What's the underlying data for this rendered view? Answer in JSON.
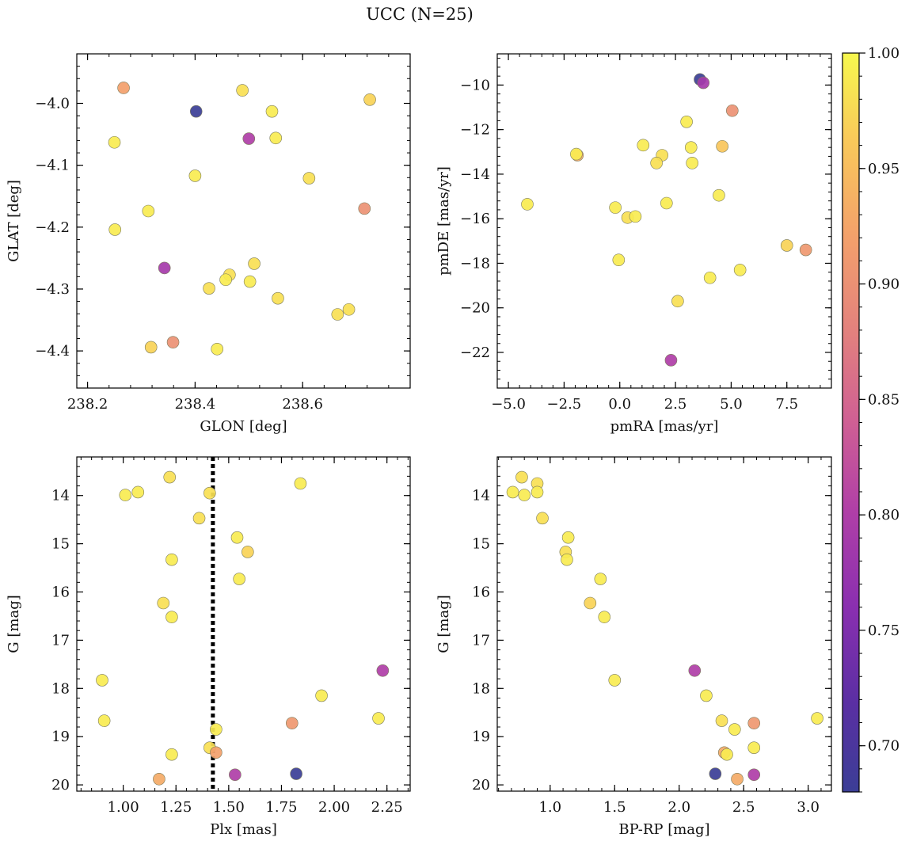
{
  "figure": {
    "title": "UCC (N=25)"
  },
  "colorbar": {
    "colormap": "plasma",
    "range": [
      0.68,
      1.0
    ],
    "ticks": [
      0.7,
      0.75,
      0.8,
      0.85,
      0.9,
      0.95,
      1.0
    ],
    "tick_labels": [
      "0.70",
      "0.75",
      "0.80",
      "0.85",
      "0.90",
      "0.95",
      "1.00"
    ]
  },
  "chart_data": [
    {
      "type": "scatter",
      "xlabel": "GLON [deg]",
      "ylabel": "GLAT [deg]",
      "xlim": [
        238.18,
        238.8
      ],
      "ylim": [
        -4.46,
        -3.92
      ],
      "xticks": [
        238.2,
        238.4,
        238.6
      ],
      "xtick_labels": [
        "238.2",
        "238.4",
        "238.6"
      ],
      "yticks": [
        -4.0,
        -4.1,
        -4.2,
        -4.3,
        -4.4
      ],
      "ytick_labels": [
        "−4.0",
        "−4.1",
        "−4.2",
        "−4.3",
        "−4.4"
      ],
      "y_inverted": false,
      "points": [
        {
          "x": 238.267,
          "y": -3.975,
          "c": 0.92
        },
        {
          "x": 238.402,
          "y": -4.013,
          "c": 0.68
        },
        {
          "x": 238.488,
          "y": -3.979,
          "c": 0.98
        },
        {
          "x": 238.543,
          "y": -4.013,
          "c": 0.99
        },
        {
          "x": 238.725,
          "y": -3.994,
          "c": 0.97
        },
        {
          "x": 238.25,
          "y": -4.063,
          "c": 0.99
        },
        {
          "x": 238.5,
          "y": -4.057,
          "c": 0.8
        },
        {
          "x": 238.55,
          "y": -4.056,
          "c": 0.99
        },
        {
          "x": 238.4,
          "y": -4.117,
          "c": 0.99
        },
        {
          "x": 238.612,
          "y": -4.121,
          "c": 0.98
        },
        {
          "x": 238.313,
          "y": -4.174,
          "c": 0.99
        },
        {
          "x": 238.715,
          "y": -4.17,
          "c": 0.9
        },
        {
          "x": 238.251,
          "y": -4.204,
          "c": 0.99
        },
        {
          "x": 238.343,
          "y": -4.266,
          "c": 0.79
        },
        {
          "x": 238.51,
          "y": -4.259,
          "c": 0.98
        },
        {
          "x": 238.464,
          "y": -4.277,
          "c": 0.98
        },
        {
          "x": 238.457,
          "y": -4.285,
          "c": 0.99
        },
        {
          "x": 238.502,
          "y": -4.288,
          "c": 0.99
        },
        {
          "x": 238.426,
          "y": -4.299,
          "c": 0.98
        },
        {
          "x": 238.554,
          "y": -4.315,
          "c": 0.98
        },
        {
          "x": 238.686,
          "y": -4.333,
          "c": 0.98
        },
        {
          "x": 238.665,
          "y": -4.341,
          "c": 0.98
        },
        {
          "x": 238.318,
          "y": -4.394,
          "c": 0.97
        },
        {
          "x": 238.359,
          "y": -4.386,
          "c": 0.9
        },
        {
          "x": 238.441,
          "y": -4.397,
          "c": 0.99
        }
      ]
    },
    {
      "type": "scatter",
      "xlabel": "pmRA [mas/yr]",
      "ylabel": "pmDE [mas/yr]",
      "xlim": [
        -5.5,
        9.5
      ],
      "ylim": [
        -23.6,
        -8.6
      ],
      "xticks": [
        -5.0,
        -2.5,
        0.0,
        2.5,
        5.0,
        7.5
      ],
      "xtick_labels": [
        "−5.0",
        "−2.5",
        "0.0",
        "2.5",
        "5.0",
        "7.5"
      ],
      "yticks": [
        -10,
        -12,
        -14,
        -16,
        -18,
        -20,
        -22
      ],
      "ytick_labels": [
        "−10",
        "−12",
        "−14",
        "−16",
        "−18",
        "−20",
        "−22"
      ],
      "y_inverted": false,
      "points": [
        {
          "x": 3.6,
          "y": -9.75,
          "c": 0.68
        },
        {
          "x": 3.75,
          "y": -9.9,
          "c": 0.79
        },
        {
          "x": 5.05,
          "y": -11.15,
          "c": 0.9
        },
        {
          "x": 3.0,
          "y": -11.65,
          "c": 0.99
        },
        {
          "x": 1.05,
          "y": -12.7,
          "c": 0.99
        },
        {
          "x": 3.2,
          "y": -12.8,
          "c": 0.99
        },
        {
          "x": 4.6,
          "y": -12.75,
          "c": 0.96
        },
        {
          "x": -1.9,
          "y": -13.15,
          "c": 0.93
        },
        {
          "x": -1.95,
          "y": -13.1,
          "c": 0.99
        },
        {
          "x": 1.9,
          "y": -13.15,
          "c": 0.98
        },
        {
          "x": 1.65,
          "y": -13.5,
          "c": 0.98
        },
        {
          "x": 3.25,
          "y": -13.5,
          "c": 0.99
        },
        {
          "x": 4.45,
          "y": -14.95,
          "c": 0.99
        },
        {
          "x": -4.15,
          "y": -15.35,
          "c": 0.99
        },
        {
          "x": 2.1,
          "y": -15.3,
          "c": 0.99
        },
        {
          "x": -0.2,
          "y": -15.5,
          "c": 0.99
        },
        {
          "x": 0.35,
          "y": -15.95,
          "c": 0.98
        },
        {
          "x": 0.7,
          "y": -15.9,
          "c": 0.99
        },
        {
          "x": 7.5,
          "y": -17.2,
          "c": 0.97
        },
        {
          "x": 8.35,
          "y": -17.4,
          "c": 0.91
        },
        {
          "x": -0.05,
          "y": -17.85,
          "c": 0.99
        },
        {
          "x": 5.4,
          "y": -18.3,
          "c": 0.99
        },
        {
          "x": 4.05,
          "y": -18.65,
          "c": 0.99
        },
        {
          "x": 2.6,
          "y": -19.7,
          "c": 0.98
        },
        {
          "x": 2.3,
          "y": -22.35,
          "c": 0.8
        }
      ]
    },
    {
      "type": "scatter",
      "xlabel": "Plx [mas]",
      "ylabel": "G [mag]",
      "xlim": [
        0.78,
        2.36
      ],
      "ylim": [
        20.13,
        13.2
      ],
      "xticks": [
        1.0,
        1.25,
        1.5,
        1.75,
        2.0,
        2.25
      ],
      "xtick_labels": [
        "1.00",
        "1.25",
        "1.50",
        "1.75",
        "2.00",
        "2.25"
      ],
      "yticks": [
        14,
        15,
        16,
        17,
        18,
        19,
        20
      ],
      "ytick_labels": [
        "14",
        "15",
        "16",
        "17",
        "18",
        "19",
        "20"
      ],
      "y_inverted": true,
      "vline": {
        "x": 1.425,
        "style": "dotted"
      },
      "points": [
        {
          "x": 1.22,
          "y": 13.62,
          "c": 0.98
        },
        {
          "x": 1.84,
          "y": 13.75,
          "c": 0.99
        },
        {
          "x": 1.07,
          "y": 13.93,
          "c": 0.99
        },
        {
          "x": 1.01,
          "y": 13.99,
          "c": 0.99
        },
        {
          "x": 1.41,
          "y": 13.95,
          "c": 0.98
        },
        {
          "x": 1.36,
          "y": 14.47,
          "c": 0.98
        },
        {
          "x": 1.54,
          "y": 14.87,
          "c": 0.99
        },
        {
          "x": 1.59,
          "y": 15.17,
          "c": 0.97
        },
        {
          "x": 1.23,
          "y": 15.33,
          "c": 0.99
        },
        {
          "x": 1.55,
          "y": 15.73,
          "c": 0.99
        },
        {
          "x": 1.19,
          "y": 16.23,
          "c": 0.98
        },
        {
          "x": 1.23,
          "y": 16.52,
          "c": 0.99
        },
        {
          "x": 0.9,
          "y": 17.83,
          "c": 0.99
        },
        {
          "x": 2.23,
          "y": 17.63,
          "c": 0.8
        },
        {
          "x": 1.94,
          "y": 18.15,
          "c": 0.99
        },
        {
          "x": 0.91,
          "y": 18.67,
          "c": 0.99
        },
        {
          "x": 2.21,
          "y": 18.62,
          "c": 0.99
        },
        {
          "x": 1.8,
          "y": 18.72,
          "c": 0.91
        },
        {
          "x": 1.44,
          "y": 18.85,
          "c": 0.99
        },
        {
          "x": 1.41,
          "y": 19.23,
          "c": 0.98
        },
        {
          "x": 1.44,
          "y": 19.33,
          "c": 0.92
        },
        {
          "x": 1.23,
          "y": 19.37,
          "c": 0.99
        },
        {
          "x": 1.53,
          "y": 19.79,
          "c": 0.8
        },
        {
          "x": 1.82,
          "y": 19.77,
          "c": 0.68
        },
        {
          "x": 1.17,
          "y": 19.88,
          "c": 0.93
        }
      ]
    },
    {
      "type": "scatter",
      "xlabel": "BP-RP [mag]",
      "ylabel": "G [mag]",
      "xlim": [
        0.59,
        3.18
      ],
      "ylim": [
        20.13,
        13.2
      ],
      "xticks": [
        1.0,
        1.5,
        2.0,
        2.5,
        3.0
      ],
      "xtick_labels": [
        "1.0",
        "1.5",
        "2.0",
        "2.5",
        "3.0"
      ],
      "yticks": [
        14,
        15,
        16,
        17,
        18,
        19,
        20
      ],
      "ytick_labels": [
        "14",
        "15",
        "16",
        "17",
        "18",
        "19",
        "20"
      ],
      "y_inverted": true,
      "points": [
        {
          "x": 0.78,
          "y": 13.62,
          "c": 0.98
        },
        {
          "x": 0.9,
          "y": 13.75,
          "c": 0.98
        },
        {
          "x": 0.71,
          "y": 13.93,
          "c": 0.99
        },
        {
          "x": 0.9,
          "y": 13.93,
          "c": 0.99
        },
        {
          "x": 0.8,
          "y": 13.99,
          "c": 0.99
        },
        {
          "x": 0.94,
          "y": 14.47,
          "c": 0.98
        },
        {
          "x": 1.14,
          "y": 14.87,
          "c": 0.99
        },
        {
          "x": 1.12,
          "y": 15.17,
          "c": 0.98
        },
        {
          "x": 1.13,
          "y": 15.33,
          "c": 0.99
        },
        {
          "x": 1.39,
          "y": 15.73,
          "c": 0.99
        },
        {
          "x": 1.31,
          "y": 16.23,
          "c": 0.97
        },
        {
          "x": 1.42,
          "y": 16.52,
          "c": 0.99
        },
        {
          "x": 2.12,
          "y": 17.63,
          "c": 0.8
        },
        {
          "x": 1.5,
          "y": 17.83,
          "c": 0.99
        },
        {
          "x": 2.21,
          "y": 18.15,
          "c": 0.99
        },
        {
          "x": 3.07,
          "y": 18.62,
          "c": 0.99
        },
        {
          "x": 2.33,
          "y": 18.67,
          "c": 0.98
        },
        {
          "x": 2.58,
          "y": 18.72,
          "c": 0.91
        },
        {
          "x": 2.43,
          "y": 18.85,
          "c": 0.99
        },
        {
          "x": 2.58,
          "y": 19.23,
          "c": 0.99
        },
        {
          "x": 2.35,
          "y": 19.33,
          "c": 0.93
        },
        {
          "x": 2.37,
          "y": 19.37,
          "c": 0.99
        },
        {
          "x": 2.28,
          "y": 19.77,
          "c": 0.68
        },
        {
          "x": 2.58,
          "y": 19.79,
          "c": 0.8
        },
        {
          "x": 2.45,
          "y": 19.88,
          "c": 0.93
        }
      ]
    }
  ]
}
